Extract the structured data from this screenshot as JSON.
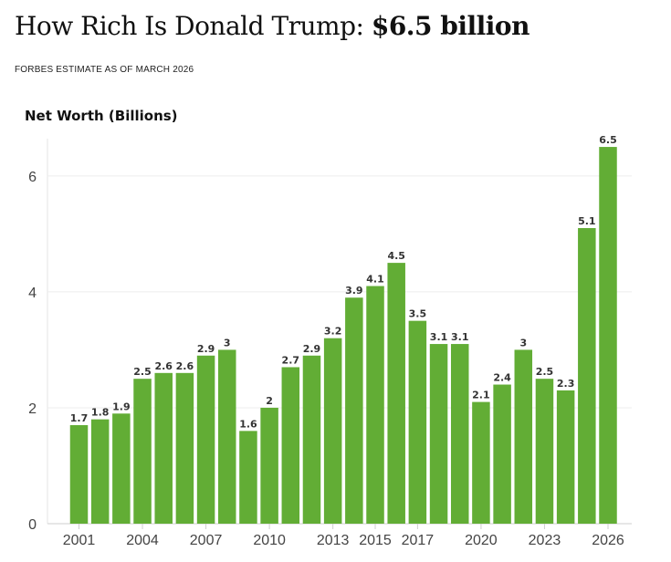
{
  "header": {
    "title_prefix": "How Rich Is Donald Trump: ",
    "title_value": "$6.5 billion",
    "subtitle": "FORBES ESTIMATE AS OF MARCH 2026"
  },
  "chart_data": {
    "type": "bar",
    "ylabel": "Net Worth (Billions)",
    "xlabel": "",
    "ylim": [
      0,
      6.8
    ],
    "yticks": [
      0,
      2,
      4,
      6
    ],
    "categories": [
      "2001",
      "2002",
      "2003",
      "2004",
      "2005",
      "2006",
      "2007",
      "2008",
      "2009",
      "2010",
      "2011",
      "2012",
      "2013",
      "2014",
      "2015",
      "2016",
      "2017",
      "2018",
      "2019",
      "2020",
      "2021",
      "2022",
      "2023",
      "2024",
      "2025",
      "2026"
    ],
    "values": [
      1.7,
      1.8,
      1.9,
      2.5,
      2.6,
      2.6,
      2.9,
      3,
      1.6,
      2,
      2.7,
      2.9,
      3.2,
      3.9,
      4.1,
      4.5,
      3.5,
      3.1,
      3.1,
      2.1,
      2.4,
      3,
      2.5,
      2.3,
      5.1,
      6.5
    ],
    "value_labels": [
      "1.7",
      "1.8",
      "1.9",
      "2.5",
      "2.6",
      "2.6",
      "2.9",
      "3",
      "1.6",
      "2",
      "2.7",
      "2.9",
      "3.2",
      "3.9",
      "4.1",
      "4.5",
      "3.5",
      "3.1",
      "3.1",
      "2.1",
      "2.4",
      "3",
      "2.5",
      "2.3",
      "5.1",
      "6.5"
    ],
    "xtick_labels": [
      "2001",
      "2004",
      "2007",
      "2010",
      "2013",
      "2015",
      "2017",
      "2020",
      "2023",
      "2026"
    ],
    "bar_color": "#62ad35",
    "grid": true
  }
}
